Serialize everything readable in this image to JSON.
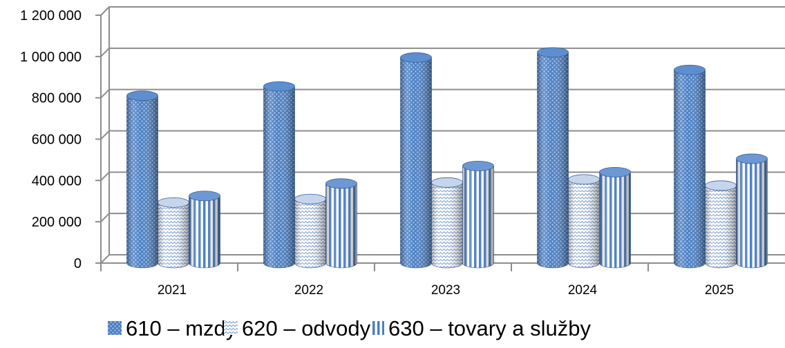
{
  "chart_data": {
    "type": "bar",
    "categories": [
      "2021",
      "2022",
      "2023",
      "2024",
      "2025"
    ],
    "series": [
      {
        "name": "610 – mzdy",
        "values": [
          810000,
          855000,
          995000,
          1020000,
          935000
        ],
        "color": "#4a7fc4",
        "pattern": "dots"
      },
      {
        "name": "620 – odvody",
        "values": [
          293000,
          310000,
          390000,
          405000,
          375000
        ],
        "color": "#8aa9d6",
        "pattern": "zigzag"
      },
      {
        "name": "630 – tovary a služby",
        "values": [
          325000,
          385000,
          470000,
          440000,
          505000
        ],
        "color": "#4a7fc4",
        "pattern": "vstripes"
      }
    ],
    "yticks": [
      "0",
      "200 000",
      "400 000",
      "600 000",
      "800 000",
      "1 000 000",
      "1 200 000"
    ],
    "ylim": [
      0,
      1200000
    ],
    "grid": true,
    "legend": "bottom"
  }
}
